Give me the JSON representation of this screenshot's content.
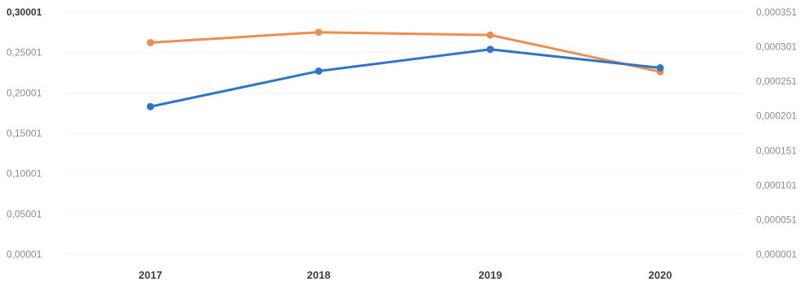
{
  "chart_data": {
    "type": "line",
    "categories": [
      "2017",
      "2018",
      "2019",
      "2020"
    ],
    "series": [
      {
        "axis": "left",
        "color": "#2e75c9",
        "values": [
          0.183,
          0.227,
          0.254,
          0.231
        ]
      },
      {
        "axis": "right",
        "color": "#f08c4e",
        "values": [
          0.000307,
          0.000322,
          0.000318,
          0.000265
        ]
      }
    ],
    "left_axis": {
      "ticks": [
        "0,00001",
        "0,05001",
        "0,10001",
        "0,15001",
        "0,20001",
        "0,25001",
        "0,30001"
      ],
      "ylim": [
        1e-05,
        0.30001
      ]
    },
    "right_axis": {
      "ticks": [
        "0,000001",
        "0,000051",
        "0,000101",
        "0,000151",
        "0,000201",
        "0,000251",
        "0,000301",
        "0,000351"
      ],
      "ylim": [
        1e-06,
        0.000351
      ]
    },
    "grid": true,
    "legend": "none"
  }
}
